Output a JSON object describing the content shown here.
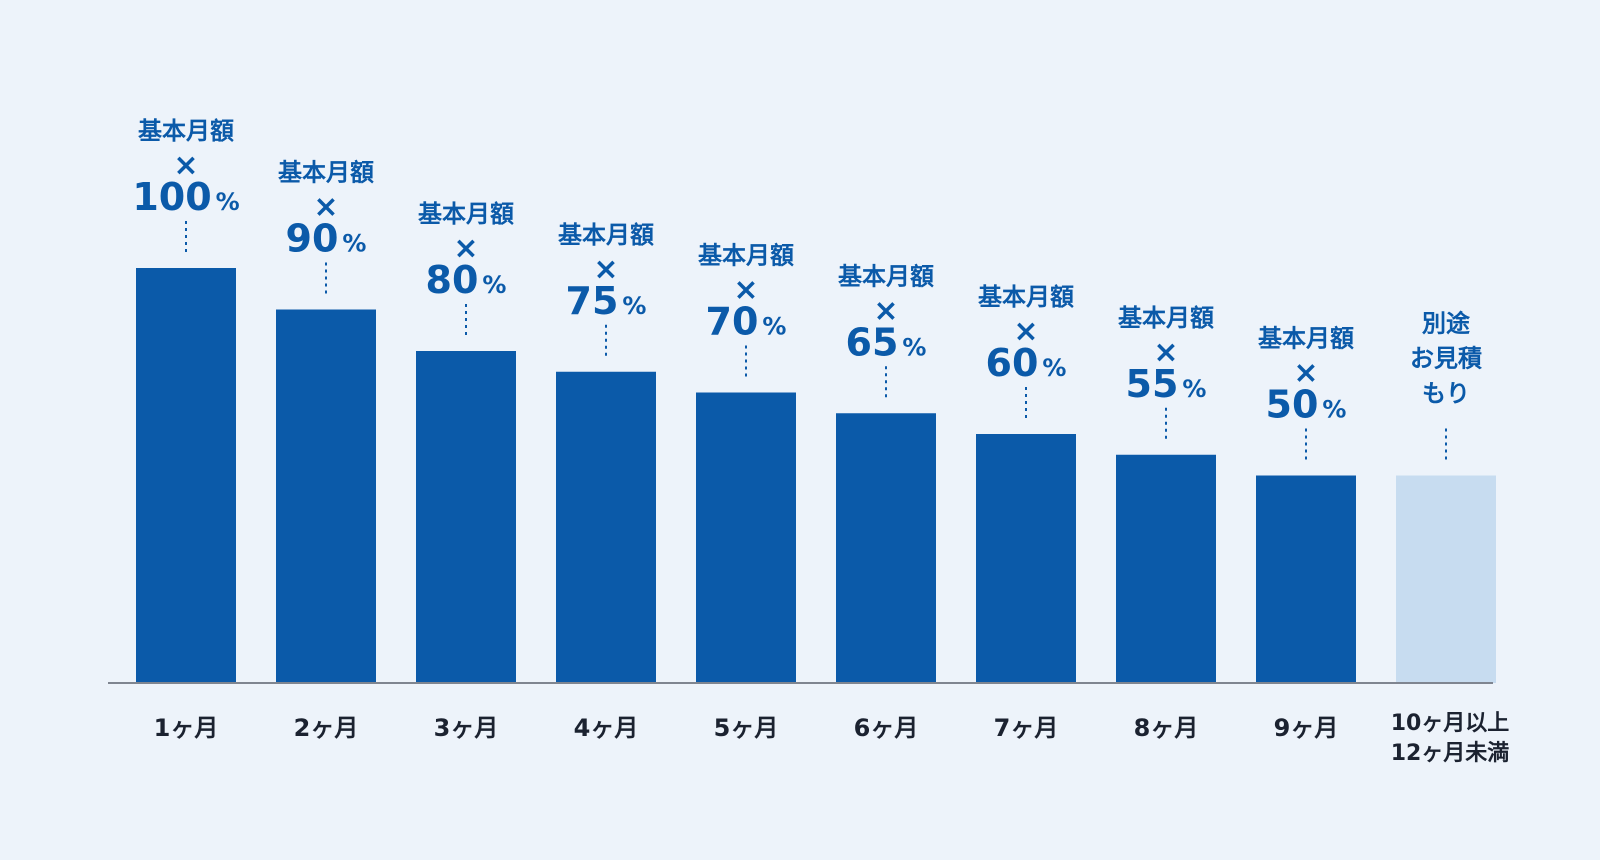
{
  "chart_data": {
    "type": "bar",
    "title": "",
    "xlabel": "",
    "ylabel": "",
    "ylim": [
      0,
      100
    ],
    "grid": false,
    "legend": "none",
    "categories": [
      {
        "label": [
          "1ヶ月"
        ]
      },
      {
        "label": [
          "2ヶ月"
        ]
      },
      {
        "label": [
          "3ヶ月"
        ]
      },
      {
        "label": [
          "4ヶ月"
        ]
      },
      {
        "label": [
          "5ヶ月"
        ]
      },
      {
        "label": [
          "6ヶ月"
        ]
      },
      {
        "label": [
          "7ヶ月"
        ]
      },
      {
        "label": [
          "8ヶ月"
        ]
      },
      {
        "label": [
          "9ヶ月"
        ]
      },
      {
        "label": [
          "10ヶ月以上",
          "12ヶ月未満"
        ]
      }
    ],
    "values": [
      100,
      90,
      80,
      75,
      70,
      65,
      60,
      55,
      50,
      50
    ],
    "value_labels": [
      {
        "prefix": "基本月額",
        "times": "×",
        "number": "100",
        "unit": "%"
      },
      {
        "prefix": "基本月額",
        "times": "×",
        "number": "90",
        "unit": "%"
      },
      {
        "prefix": "基本月額",
        "times": "×",
        "number": "80",
        "unit": "%"
      },
      {
        "prefix": "基本月額",
        "times": "×",
        "number": "75",
        "unit": "%"
      },
      {
        "prefix": "基本月額",
        "times": "×",
        "number": "70",
        "unit": "%"
      },
      {
        "prefix": "基本月額",
        "times": "×",
        "number": "65",
        "unit": "%"
      },
      {
        "prefix": "基本月額",
        "times": "×",
        "number": "60",
        "unit": "%"
      },
      {
        "prefix": "基本月額",
        "times": "×",
        "number": "55",
        "unit": "%"
      },
      {
        "prefix": "基本月額",
        "times": "×",
        "number": "50",
        "unit": "%"
      },
      {
        "special": [
          "別途",
          "お見積",
          "もり"
        ]
      }
    ],
    "colors": {
      "bar": "#0b5aa9",
      "bar_special": "#c7dcf0",
      "label": "#0b5aa9",
      "axis": "#7f8590",
      "category_text": "#1b2230",
      "background": "#edf3fa"
    }
  }
}
